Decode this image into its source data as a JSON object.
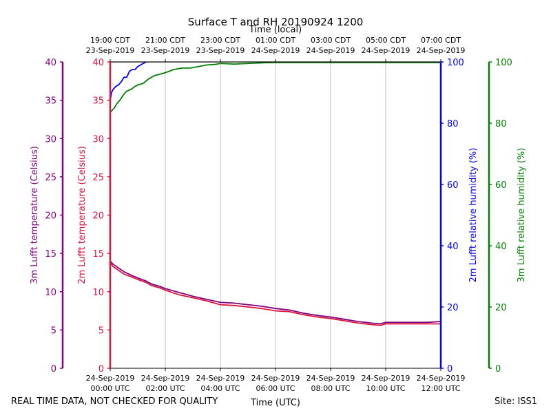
{
  "chart_data": {
    "type": "line",
    "title": "Surface T and RH 20190924 1200",
    "x_bottom": {
      "label": "Time (UTC)",
      "ticks": [
        [
          "24-Sep-2019",
          "00:00 UTC"
        ],
        [
          "24-Sep-2019",
          "02:00 UTC"
        ],
        [
          "24-Sep-2019",
          "04:00 UTC"
        ],
        [
          "24-Sep-2019",
          "06:00 UTC"
        ],
        [
          "24-Sep-2019",
          "08:00 UTC"
        ],
        [
          "24-Sep-2019",
          "10:00 UTC"
        ],
        [
          "24-Sep-2019",
          "12:00 UTC"
        ]
      ],
      "range_hours": [
        0,
        12
      ]
    },
    "x_top": {
      "label": "Time (local)",
      "ticks": [
        [
          "19:00 CDT",
          "23-Sep-2019"
        ],
        [
          "21:00 CDT",
          "23-Sep-2019"
        ],
        [
          "23:00 CDT",
          "23-Sep-2019"
        ],
        [
          "01:00 CDT",
          "24-Sep-2019"
        ],
        [
          "03:00 CDT",
          "24-Sep-2019"
        ],
        [
          "05:00 CDT",
          "24-Sep-2019"
        ],
        [
          "07:00 CDT",
          "24-Sep-2019"
        ]
      ]
    },
    "axes": {
      "t3m": {
        "label": "3m Lufft temperature (Celsius)",
        "ylim": [
          0,
          40
        ],
        "ticks": [
          0,
          5,
          10,
          15,
          20,
          25,
          30,
          35,
          40
        ],
        "color": "#800080"
      },
      "t2m": {
        "label": "2m Lufft temperature (Celsius)",
        "ylim": [
          0,
          40
        ],
        "ticks": [
          0,
          5,
          10,
          15,
          20,
          25,
          30,
          35,
          40
        ],
        "color": "#dc143c"
      },
      "rh2m": {
        "label": "2m Lufft relative humidity (%)",
        "ylim": [
          0,
          100
        ],
        "ticks": [
          0,
          20,
          40,
          60,
          80,
          100
        ],
        "color": "#0000ff"
      },
      "rh3m": {
        "label": "3m Lufft relative humidity (%)",
        "ylim": [
          0,
          100
        ],
        "ticks": [
          0,
          20,
          40,
          60,
          80,
          100
        ],
        "color": "#008000"
      }
    },
    "series": [
      {
        "name": "3m Lufft temperature (Celsius)",
        "axis": "t3m",
        "color": "#800080",
        "x": [
          0,
          0.1,
          0.3,
          0.5,
          0.8,
          1.0,
          1.3,
          1.5,
          1.8,
          2.0,
          2.5,
          3.0,
          3.5,
          4.0,
          4.5,
          5.0,
          5.5,
          6.0,
          6.5,
          7.0,
          7.5,
          8.0,
          8.5,
          9.0,
          9.5,
          9.8,
          10.0,
          10.5,
          11.0,
          11.5,
          12.0
        ],
        "y": [
          14.0,
          13.6,
          13.1,
          12.6,
          12.1,
          11.8,
          11.4,
          11.0,
          10.7,
          10.4,
          9.9,
          9.4,
          9.0,
          8.6,
          8.5,
          8.3,
          8.1,
          7.8,
          7.6,
          7.2,
          6.9,
          6.7,
          6.4,
          6.1,
          5.9,
          5.8,
          6.0,
          6.0,
          6.0,
          6.0,
          6.1
        ]
      },
      {
        "name": "2m Lufft temperature (Celsius)",
        "axis": "t2m",
        "color": "#dc143c",
        "x": [
          0,
          0.1,
          0.3,
          0.5,
          0.8,
          1.0,
          1.3,
          1.5,
          1.8,
          2.0,
          2.5,
          3.0,
          3.5,
          4.0,
          4.5,
          5.0,
          5.5,
          6.0,
          6.5,
          7.0,
          7.5,
          8.0,
          8.5,
          9.0,
          9.5,
          9.8,
          10.0,
          10.5,
          11.0,
          11.5,
          12.0
        ],
        "y": [
          13.8,
          13.3,
          12.8,
          12.3,
          11.9,
          11.6,
          11.2,
          10.8,
          10.5,
          10.2,
          9.6,
          9.2,
          8.8,
          8.3,
          8.2,
          8.0,
          7.8,
          7.5,
          7.4,
          7.0,
          6.7,
          6.5,
          6.2,
          5.9,
          5.7,
          5.6,
          5.8,
          5.8,
          5.8,
          5.8,
          5.8
        ]
      },
      {
        "name": "2m Lufft relative humidity (%)",
        "axis": "rh2m",
        "color": "#0000ff",
        "x": [
          0,
          0.05,
          0.1,
          0.2,
          0.3,
          0.4,
          0.5,
          0.6,
          0.7,
          0.8,
          0.9,
          1.0,
          1.1,
          1.2,
          1.3
        ],
        "y": [
          87.5,
          90.0,
          91.0,
          92.0,
          92.5,
          93.5,
          95.0,
          95.0,
          97.0,
          97.5,
          97.5,
          98.5,
          99.0,
          99.5,
          100.0
        ]
      },
      {
        "name": "3m Lufft relative humidity (%)",
        "axis": "rh3m",
        "color": "#008000",
        "x": [
          0,
          0.05,
          0.15,
          0.25,
          0.35,
          0.5,
          0.6,
          0.75,
          0.9,
          1.0,
          1.2,
          1.4,
          1.5,
          1.6,
          1.8,
          2.0,
          2.3,
          2.6,
          2.9,
          3.2,
          3.5,
          3.8,
          4.0,
          4.5,
          5.0,
          5.5,
          6.0,
          7.0,
          8.0,
          9.0,
          10.0,
          11.0,
          12.0
        ],
        "y": [
          83.5,
          84.0,
          85.0,
          86.5,
          87.5,
          89.5,
          90.5,
          91.0,
          92.0,
          92.5,
          93.0,
          94.5,
          95.0,
          95.5,
          96.0,
          96.5,
          97.5,
          98.0,
          98.0,
          98.5,
          99.0,
          99.2,
          99.5,
          99.3,
          99.5,
          99.7,
          99.8,
          99.8,
          99.8,
          99.8,
          99.8,
          99.8,
          99.8
        ]
      }
    ]
  },
  "footer": {
    "qc_note": "REAL TIME DATA, NOT CHECKED FOR QUALITY",
    "site": "Site: ISS1"
  }
}
